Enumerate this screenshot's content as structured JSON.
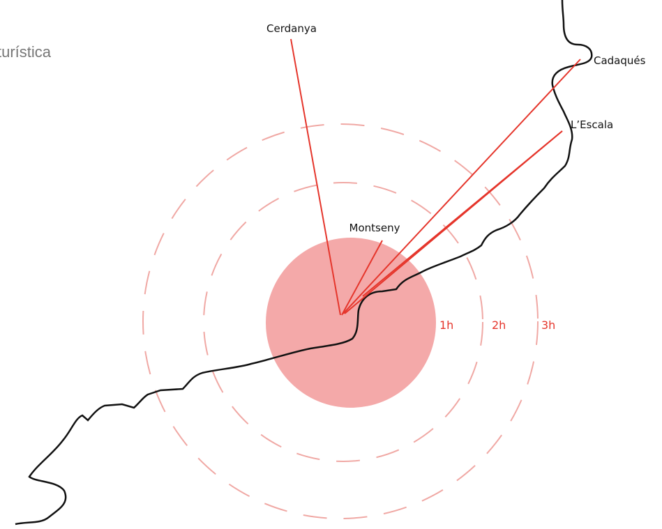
{
  "header": {
    "title": "turística"
  },
  "places": [
    {
      "label": "Cerdanya"
    },
    {
      "label": "Cadaqués"
    },
    {
      "label": "L’Escala"
    },
    {
      "label": "Montseny"
    }
  ],
  "rings": [
    {
      "label": "1h"
    },
    {
      "label": "2h"
    },
    {
      "label": "3h"
    }
  ]
}
